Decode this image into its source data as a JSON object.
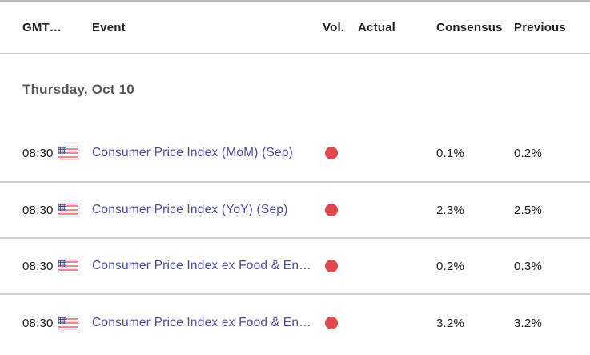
{
  "header": {
    "columns": [
      "GMT…",
      "Event",
      "Vol.",
      "Actual",
      "Consensus",
      "Previous"
    ]
  },
  "date_section": {
    "label": "Thursday, Oct 10"
  },
  "rows": [
    {
      "time": "08:30",
      "flag": "us-flag",
      "event": "Consumer Price Index (MoM) (Sep)",
      "volatility": "high",
      "actual": "",
      "consensus": "0.1%",
      "previous": "0.2%"
    },
    {
      "time": "08:30",
      "flag": "us-flag",
      "event": "Consumer Price Index (YoY) (Sep)",
      "volatility": "high",
      "actual": "",
      "consensus": "2.3%",
      "previous": "2.5%"
    },
    {
      "time": "08:30",
      "flag": "us-flag",
      "event": "Consumer Price Index ex Food & Energy …",
      "volatility": "high",
      "actual": "",
      "consensus": "0.2%",
      "previous": "0.3%"
    },
    {
      "time": "08:30",
      "flag": "us-flag",
      "event": "Consumer Price Index ex Food & Energy …",
      "volatility": "high",
      "actual": "",
      "consensus": "3.2%",
      "previous": "3.2%"
    }
  ],
  "colors": {
    "event_link": "#4b4b9f",
    "volatility_dot": "#e0484e",
    "divider": "#cbd2d1",
    "flag_canton_blue": "#3c3b6e",
    "flag_stripe_red": "#b22234",
    "header_text": "#222222",
    "date_text": "#565759"
  }
}
